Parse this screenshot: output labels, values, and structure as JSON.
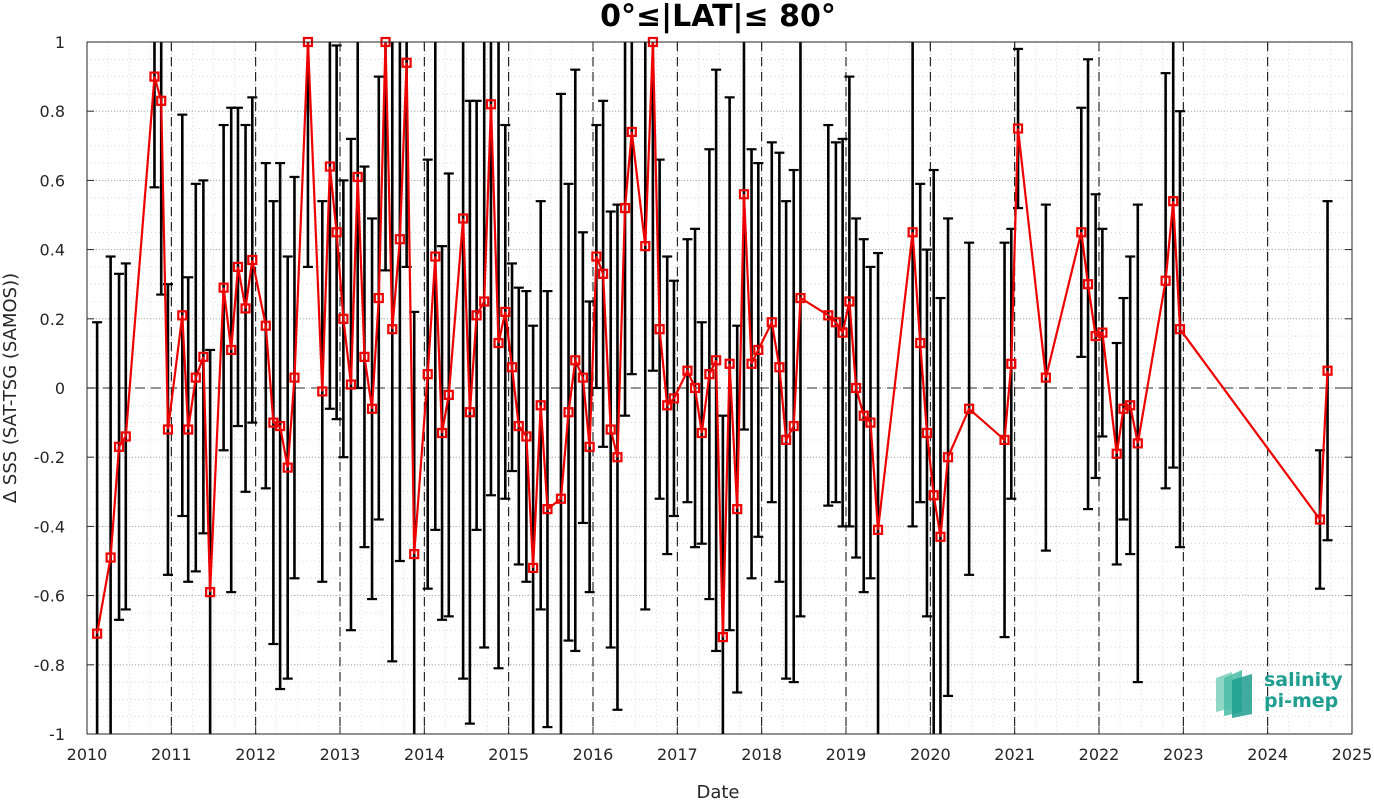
{
  "chart_data": {
    "type": "line",
    "title": "0°≤|LAT|≤ 80°",
    "xlabel": "Date",
    "ylabel": "Δ SSS (SAT-TSG (SAMOS))",
    "xlim": [
      2010,
      2025
    ],
    "ylim": [
      -1,
      1
    ],
    "x_ticks": [
      "2010",
      "2011",
      "2012",
      "2013",
      "2014",
      "2015",
      "2016",
      "2017",
      "2018",
      "2019",
      "2020",
      "2021",
      "2022",
      "2023",
      "2024",
      "2025"
    ],
    "y_ticks": [
      "-1",
      "-0.8",
      "-0.6",
      "-0.4",
      "-0.2",
      "0",
      "0.2",
      "0.4",
      "0.6",
      "0.8",
      "1"
    ],
    "grid": true,
    "zero_line": true,
    "year_boundary_lines": true,
    "colors": {
      "series": "#ee0000",
      "errorbar": "#000000",
      "grid": "#b0b0b0",
      "logo": "#1f9e8f"
    },
    "x": [
      2010.12,
      2010.28,
      2010.38,
      2010.46,
      2010.8,
      2010.88,
      2010.96,
      2011.13,
      2011.2,
      2011.29,
      2011.38,
      2011.46,
      2011.62,
      2011.71,
      2011.79,
      2011.88,
      2011.96,
      2012.12,
      2012.21,
      2012.29,
      2012.38,
      2012.46,
      2012.62,
      2012.79,
      2012.88,
      2012.96,
      2013.04,
      2013.13,
      2013.21,
      2013.29,
      2013.38,
      2013.46,
      2013.54,
      2013.62,
      2013.71,
      2013.79,
      2013.88,
      2014.04,
      2014.13,
      2014.21,
      2014.29,
      2014.46,
      2014.54,
      2014.62,
      2014.71,
      2014.79,
      2014.88,
      2014.96,
      2015.04,
      2015.12,
      2015.21,
      2015.29,
      2015.38,
      2015.46,
      2015.62,
      2015.71,
      2015.79,
      2015.88,
      2015.96,
      2016.04,
      2016.12,
      2016.21,
      2016.29,
      2016.38,
      2016.46,
      2016.62,
      2016.71,
      2016.79,
      2016.88,
      2016.96,
      2017.12,
      2017.21,
      2017.29,
      2017.38,
      2017.46,
      2017.54,
      2017.62,
      2017.71,
      2017.79,
      2017.88,
      2017.96,
      2018.12,
      2018.21,
      2018.29,
      2018.38,
      2018.46,
      2018.79,
      2018.88,
      2018.96,
      2019.04,
      2019.12,
      2019.21,
      2019.29,
      2019.38,
      2019.79,
      2019.88,
      2019.96,
      2020.04,
      2020.12,
      2020.21,
      2020.46,
      2020.88,
      2020.96,
      2021.04,
      2021.37,
      2021.79,
      2021.87,
      2021.96,
      2022.04,
      2022.21,
      2022.29,
      2022.37,
      2022.46,
      2022.79,
      2022.88,
      2022.96,
      2024.62,
      2024.71
    ],
    "y": [
      -0.71,
      -0.49,
      -0.17,
      -0.14,
      0.9,
      0.83,
      -0.12,
      0.21,
      -0.12,
      0.03,
      0.09,
      -0.59,
      0.29,
      0.11,
      0.35,
      0.23,
      0.37,
      0.18,
      -0.1,
      -0.11,
      -0.23,
      0.03,
      1.0,
      -0.01,
      0.64,
      0.45,
      0.2,
      0.01,
      0.61,
      0.09,
      -0.06,
      0.26,
      1.0,
      0.17,
      0.43,
      0.94,
      -0.48,
      0.04,
      0.38,
      -0.13,
      -0.02,
      0.49,
      -0.07,
      0.21,
      0.25,
      0.82,
      0.13,
      0.22,
      0.06,
      -0.11,
      -0.14,
      -0.52,
      -0.05,
      -0.35,
      -0.32,
      -0.07,
      0.08,
      0.03,
      -0.17,
      0.38,
      0.33,
      -0.12,
      -0.2,
      0.52,
      0.74,
      0.41,
      1.0,
      0.17,
      -0.05,
      -0.03,
      0.05,
      0.0,
      -0.13,
      0.04,
      0.08,
      -0.72,
      0.07,
      -0.35,
      0.56,
      0.07,
      0.11,
      0.19,
      0.06,
      -0.15,
      -0.11,
      0.26,
      0.21,
      0.19,
      0.16,
      0.25,
      0.0,
      -0.08,
      -0.1,
      -0.41,
      0.45,
      0.13,
      -0.13,
      -0.31,
      -0.43,
      -0.2,
      -0.06,
      -0.15,
      0.07,
      0.75,
      0.03,
      0.45,
      0.3,
      0.15,
      0.16,
      -0.19,
      -0.06,
      -0.05,
      -0.16,
      0.31,
      0.54,
      0.17,
      -0.38,
      0.05
    ],
    "err": [
      0.9,
      0.87,
      0.5,
      0.5,
      0.32,
      0.56,
      0.42,
      0.58,
      0.44,
      0.56,
      0.51,
      0.7,
      0.47,
      0.7,
      0.46,
      0.53,
      0.47,
      0.47,
      0.64,
      0.76,
      0.61,
      0.58,
      0.65,
      0.55,
      0.7,
      0.54,
      0.4,
      0.71,
      0.61,
      0.55,
      0.55,
      0.64,
      0.66,
      0.96,
      0.93,
      0.59,
      0.7,
      0.62,
      0.79,
      0.54,
      0.64,
      1.33,
      0.9,
      0.62,
      1.0,
      1.13,
      0.94,
      0.54,
      0.3,
      0.4,
      0.42,
      0.7,
      0.59,
      0.63,
      1.17,
      0.66,
      0.84,
      0.42,
      0.42,
      0.38,
      0.5,
      0.63,
      0.73,
      0.6,
      0.7,
      1.05,
      0.95,
      0.49,
      0.43,
      0.34,
      0.38,
      0.46,
      0.32,
      0.65,
      0.84,
      0.64,
      0.77,
      0.53,
      0.68,
      0.62,
      0.54,
      0.52,
      0.62,
      0.69,
      0.74,
      0.92,
      0.55,
      0.52,
      0.56,
      0.65,
      0.49,
      0.51,
      0.45,
      0.8,
      0.85,
      0.46,
      0.53,
      0.94,
      0.69,
      0.69,
      0.48,
      0.57,
      0.39,
      0.23,
      0.5,
      0.36,
      0.65,
      0.41,
      0.3,
      0.32,
      0.32,
      0.43,
      0.69,
      0.6,
      0.77,
      0.63,
      0.2,
      0.49
    ]
  },
  "logo": {
    "line1": "salinity",
    "line2": "pi-mep"
  }
}
